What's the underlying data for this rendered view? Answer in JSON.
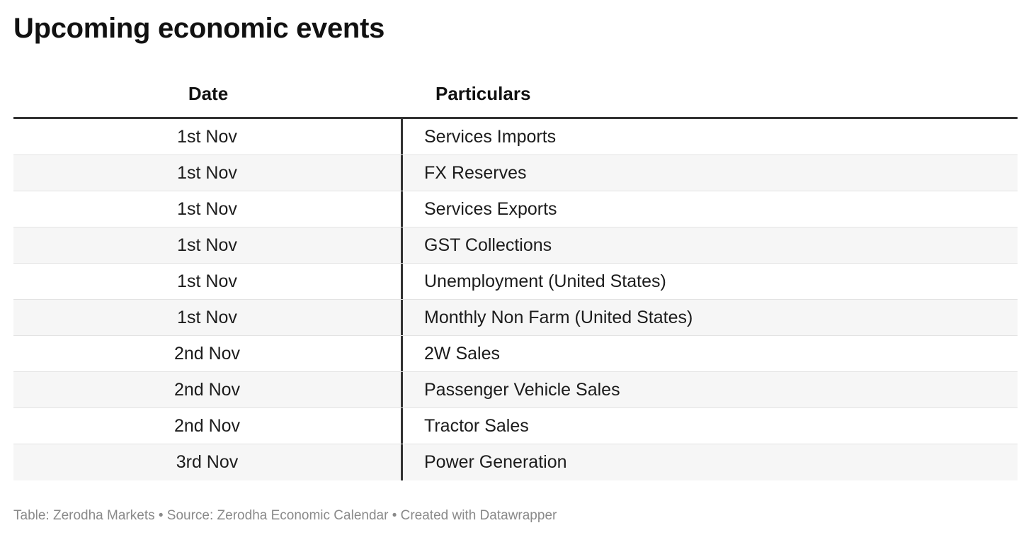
{
  "title": "Upcoming economic events",
  "footer": "Table: Zerodha Markets • Source: Zerodha Economic Calendar • Created with Datawrapper",
  "chart_data": {
    "type": "table",
    "title": "Upcoming economic events",
    "columns": [
      "Date",
      "Particulars"
    ],
    "rows": [
      {
        "date": "1st Nov",
        "particulars": "Services Imports"
      },
      {
        "date": "1st Nov",
        "particulars": "FX Reserves"
      },
      {
        "date": "1st Nov",
        "particulars": "Services Exports"
      },
      {
        "date": "1st Nov",
        "particulars": "GST Collections"
      },
      {
        "date": "1st Nov",
        "particulars": "Unemployment (United States)"
      },
      {
        "date": "1st Nov",
        "particulars": "Monthly Non Farm (United States)"
      },
      {
        "date": "2nd Nov",
        "particulars": "2W Sales"
      },
      {
        "date": "2nd Nov",
        "particulars": "Passenger Vehicle Sales"
      },
      {
        "date": "2nd Nov",
        "particulars": "Tractor Sales"
      },
      {
        "date": "3rd Nov",
        "particulars": "Power Generation"
      }
    ]
  },
  "colors": {
    "row_stripe": "#f6f6f6",
    "rule": "#333333",
    "footer_text": "#8a8a8a"
  }
}
